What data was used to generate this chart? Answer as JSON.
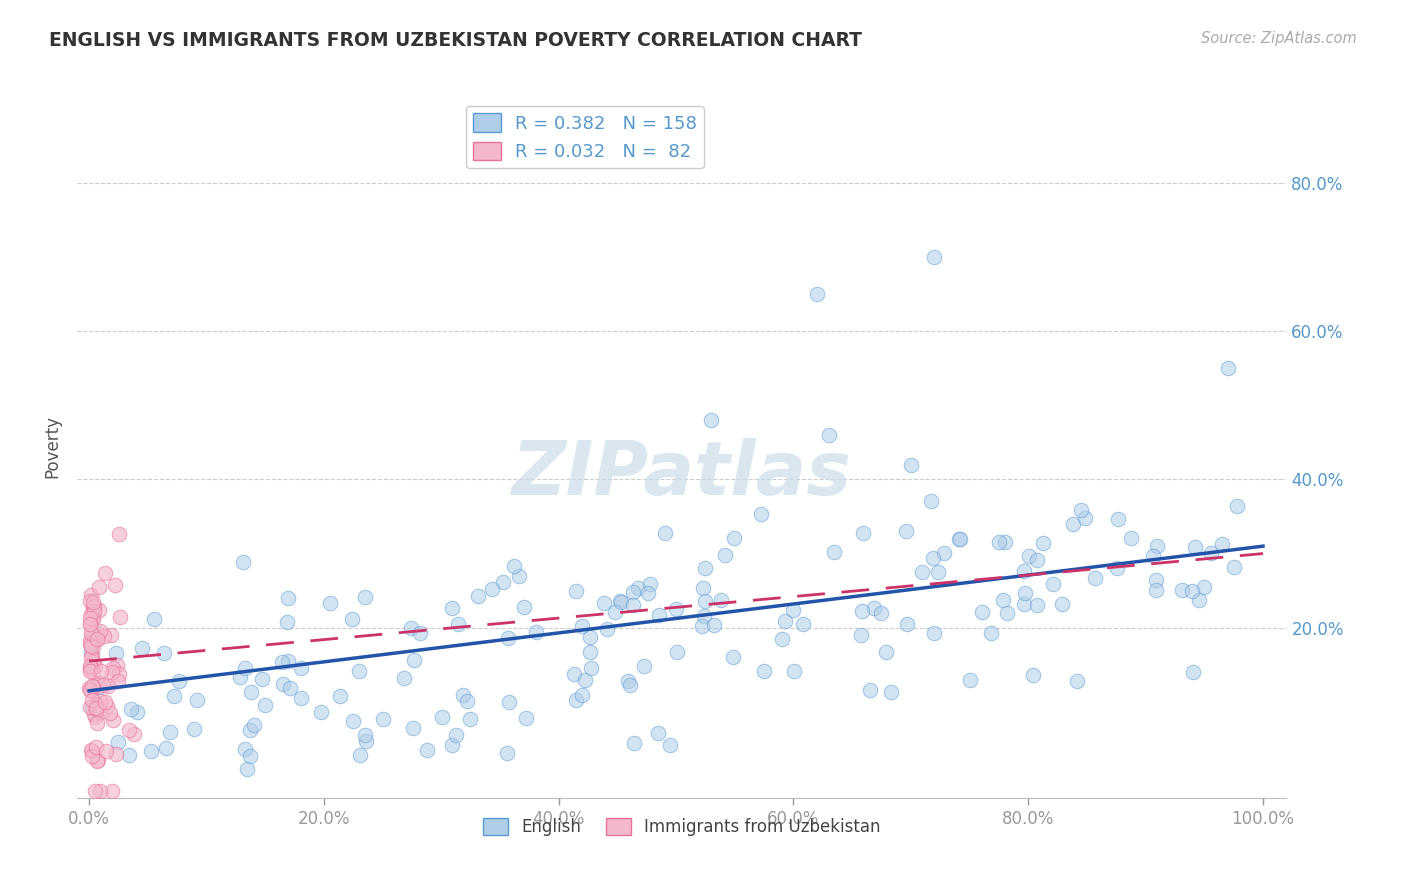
{
  "title": "ENGLISH VS IMMIGRANTS FROM UZBEKISTAN POVERTY CORRELATION CHART",
  "source": "Source: ZipAtlas.com",
  "xlabel_english": "English",
  "xlabel_uzbek": "Immigrants from Uzbekistan",
  "ylabel": "Poverty",
  "blue_R": 0.382,
  "blue_N": 158,
  "pink_R": 0.032,
  "pink_N": 82,
  "blue_color": "#aecde8",
  "blue_edge_color": "#5b9bd5",
  "blue_line_color": "#2255aa",
  "pink_color": "#f4b8cc",
  "pink_edge_color": "#e87399",
  "pink_line_color": "#cc3366",
  "background_color": "#ffffff",
  "grid_color": "#cccccc",
  "title_color": "#333333",
  "axis_label_color": "#5599cc",
  "watermark_color": "#ccdde8",
  "ylim_min": -0.03,
  "ylim_max": 0.92,
  "xlim_min": -0.01,
  "xlim_max": 1.02,
  "yticks": [
    0.2,
    0.4,
    0.6,
    0.8
  ],
  "ytick_labels": [
    "20.0%",
    "40.0%",
    "60.0%",
    "80.0%"
  ],
  "xticks": [
    0.0,
    0.2,
    0.4,
    0.6,
    0.8,
    1.0
  ],
  "xtick_labels": [
    "0.0%",
    "20.0%",
    "40.0%",
    "60.0%",
    "80.0%",
    "100.0%"
  ]
}
